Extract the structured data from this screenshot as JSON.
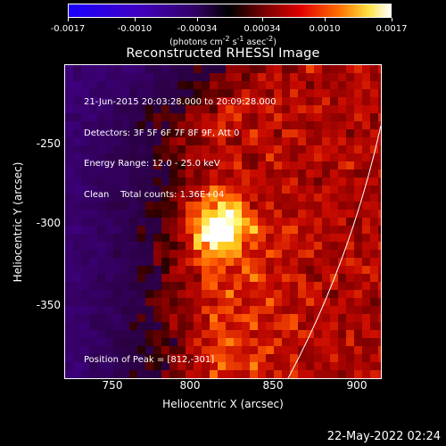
{
  "colorbar": {
    "tick_labels": [
      "-0.0017",
      "-0.0010",
      "-0.00034",
      "0.00034",
      "0.0010",
      "0.0017"
    ],
    "range": [
      -0.0017,
      0.0017
    ],
    "units_html": "(photons cm<sup>-2</sup> s<sup>-1</sup> asec<sup>-2</sup>)",
    "colors": [
      "#0000ff",
      "#3a00b0",
      "#000000",
      "#b00000",
      "#ff4a00",
      "#ffff60",
      "#ffffff"
    ]
  },
  "plot": {
    "title": "Reconstructed RHESSI Image",
    "info_lines": [
      "21-Jun-2015 20:03:28.000 to 20:09:28.000",
      "Detectors: 3F 5F 6F 7F 8F 9F, Att 0",
      "Energy Range: 12.0 - 25.0 keV",
      "Clean    Total counts: 1.36E+04"
    ],
    "peak_label": "Position of Peak = [812,-301]",
    "peak": [
      812,
      -301
    ],
    "xlabel": "Heliocentric X (arcsec)",
    "ylabel": "Heliocentric Y (arcsec)",
    "xticks": [
      "750",
      "800",
      "850",
      "900"
    ],
    "yticks": [
      "-250",
      "-300",
      "-350"
    ],
    "xlim": [
      720,
      912
    ],
    "ylim": [
      -394,
      -204
    ]
  },
  "timestamp": "22-May-2022 02:24"
}
